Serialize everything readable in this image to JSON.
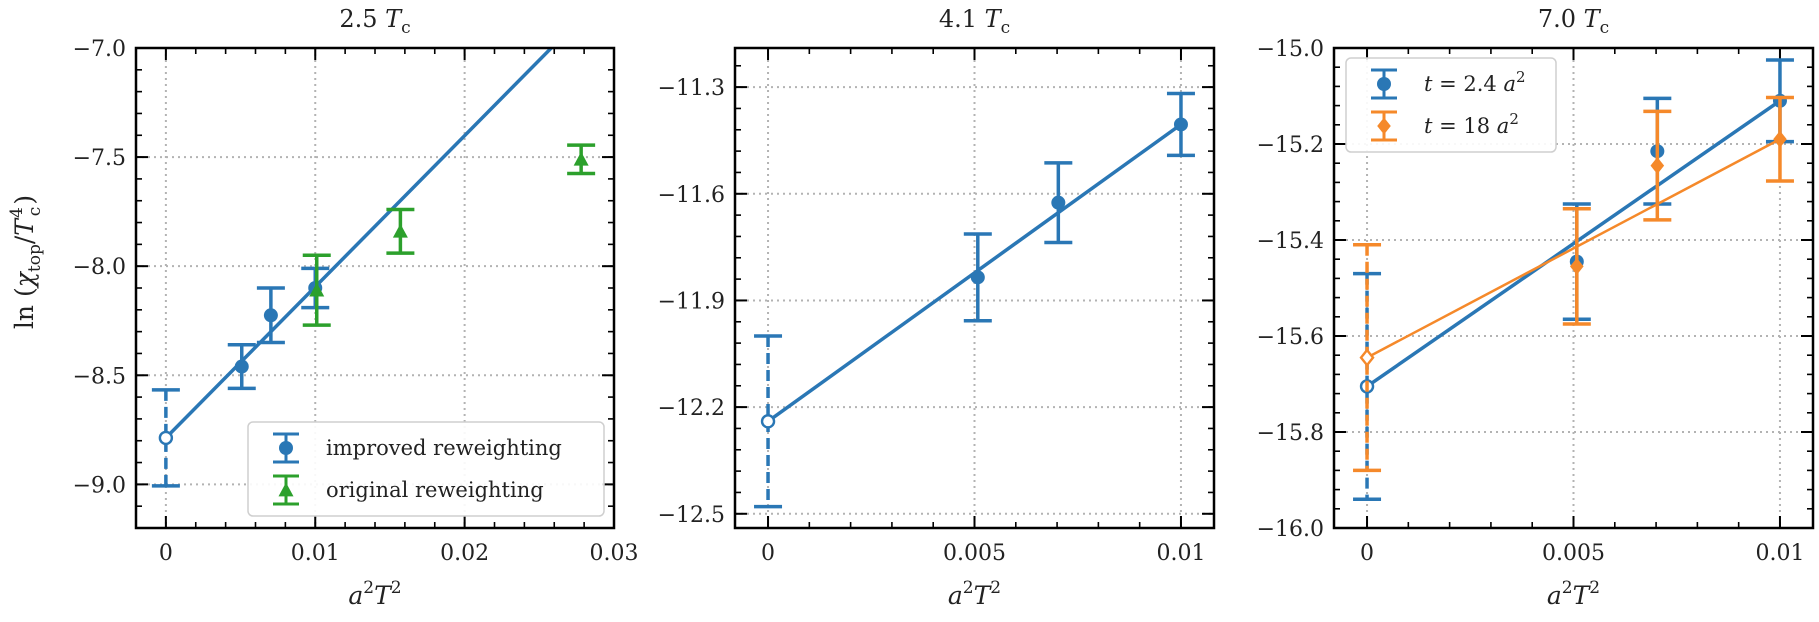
{
  "colors": {
    "blue": "#2a77b5",
    "green": "#2ca02c",
    "orange": "#f5892a",
    "grid": "#b3b3b3",
    "frame": "#000000"
  },
  "ylabel": {
    "fn": "ln",
    "chi": "χ",
    "chi_sub": "top",
    "T": "T",
    "T_sub": "c",
    "T_sup": "4"
  },
  "xlabel": {
    "a": "a",
    "sup1": "2",
    "T": "T",
    "sup2": "2"
  },
  "chart_data": [
    {
      "type": "scatter",
      "title": {
        "prefix": "2.5",
        "T": "T",
        "sub": "c"
      },
      "xlim": [
        -0.002,
        0.03
      ],
      "ylim": [
        -9.2,
        -7.0
      ],
      "xticks": [
        0,
        0.01,
        0.02,
        0.03
      ],
      "xtick_labels": [
        "0",
        "0.01",
        "0.02",
        "0.03"
      ],
      "yticks": [
        -9.0,
        -8.5,
        -8.0,
        -7.5,
        -7.0
      ],
      "ytick_labels": [
        "−9.0",
        "−8.5",
        "−8.0",
        "−7.5",
        "−7.0"
      ],
      "grid": true,
      "legend": {
        "position": "lower-right",
        "entries": [
          {
            "label": "improved reweighting",
            "color": "blue",
            "marker": "circle"
          },
          {
            "label": "original reweighting",
            "color": "green",
            "marker": "triangle"
          }
        ]
      },
      "series": [
        {
          "name": "improved reweighting",
          "color": "blue",
          "marker": "circle",
          "points": [
            {
              "x": 0.00508,
              "y": -8.46,
              "err": 0.1
            },
            {
              "x": 0.00703,
              "y": -8.225,
              "err": 0.125
            },
            {
              "x": 0.01,
              "y": -8.1,
              "err": 0.09
            }
          ],
          "fit": {
            "x": [
              0,
              0.0258
            ],
            "y": [
              -8.787,
              -7.0
            ]
          },
          "extrapolation": {
            "x": 0,
            "y": -8.787,
            "err": 0.22
          }
        },
        {
          "name": "original reweighting",
          "color": "green",
          "marker": "triangle",
          "points": [
            {
              "x": 0.0101,
              "y": -8.11,
              "err": 0.16
            },
            {
              "x": 0.0157,
              "y": -7.84,
              "err": 0.1
            },
            {
              "x": 0.0278,
              "y": -7.51,
              "err": 0.065
            }
          ]
        }
      ]
    },
    {
      "type": "scatter",
      "title": {
        "prefix": "4.1",
        "T": "T",
        "sub": "c"
      },
      "xlim": [
        -0.0008,
        0.0108
      ],
      "ylim": [
        -12.54,
        -11.19
      ],
      "xticks": [
        0,
        0.005,
        0.01
      ],
      "xtick_labels": [
        "0",
        "0.005",
        "0.01"
      ],
      "yticks": [
        -12.5,
        -12.2,
        -11.9,
        -11.6,
        -11.3
      ],
      "ytick_labels": [
        "−12.5",
        "−12.2",
        "−11.9",
        "−11.6",
        "−11.3"
      ],
      "grid": true,
      "series": [
        {
          "name": "",
          "color": "blue",
          "marker": "circle",
          "points": [
            {
              "x": 0.00508,
              "y": -11.835,
              "err": 0.122
            },
            {
              "x": 0.00703,
              "y": -11.625,
              "err": 0.112
            },
            {
              "x": 0.01,
              "y": -11.405,
              "err": 0.087
            }
          ],
          "fit": {
            "x": [
              0,
              0.01
            ],
            "y": [
              -12.24,
              -11.405
            ]
          },
          "extrapolation": {
            "x": 0,
            "y": -12.24,
            "err": 0.24
          }
        }
      ]
    },
    {
      "type": "scatter",
      "title": {
        "prefix": "7.0",
        "T": "T",
        "sub": "c"
      },
      "xlim": [
        -0.0008,
        0.0108
      ],
      "ylim": [
        -16.0,
        -15.0
      ],
      "xticks": [
        0,
        0.005,
        0.01
      ],
      "xtick_labels": [
        "0",
        "0.005",
        "0.01"
      ],
      "yticks": [
        -16.0,
        -15.8,
        -15.6,
        -15.4,
        -15.2,
        -15.0
      ],
      "ytick_labels": [
        "−16.0",
        "−15.8",
        "−15.6",
        "−15.4",
        "−15.2",
        "−15.0"
      ],
      "grid": true,
      "legend": {
        "position": "top-left",
        "entries": [
          {
            "label_var": "t",
            "label_eq": " = 2.4 ",
            "label_a": "a",
            "label_sup": "2",
            "color": "blue",
            "marker": "circle"
          },
          {
            "label_var": "t",
            "label_eq": " = 18 ",
            "label_a": "a",
            "label_sup": "2",
            "color": "orange",
            "marker": "diamond"
          }
        ]
      },
      "series": [
        {
          "name": "t = 2.4 a²",
          "color": "blue",
          "marker": "circle",
          "points": [
            {
              "x": 0.00508,
              "y": -15.445,
              "err": 0.12
            },
            {
              "x": 0.00703,
              "y": -15.215,
              "err": 0.11
            },
            {
              "x": 0.01,
              "y": -15.11,
              "err": 0.085
            }
          ],
          "fit": {
            "x": [
              0,
              0.01
            ],
            "y": [
              -15.705,
              -15.11
            ]
          },
          "extrapolation": {
            "x": 0,
            "y": -15.705,
            "err": 0.235
          }
        },
        {
          "name": "t = 18 a²",
          "color": "orange",
          "marker": "diamond",
          "points": [
            {
              "x": 0.00508,
              "y": -15.455,
              "err": 0.12
            },
            {
              "x": 0.00703,
              "y": -15.245,
              "err": 0.113
            },
            {
              "x": 0.01,
              "y": -15.19,
              "err": 0.087
            }
          ],
          "fit": {
            "x": [
              0,
              0.01
            ],
            "y": [
              -15.645,
              -15.19
            ]
          },
          "extrapolation": {
            "x": 0,
            "y": -15.645,
            "err": 0.235
          }
        }
      ]
    }
  ]
}
